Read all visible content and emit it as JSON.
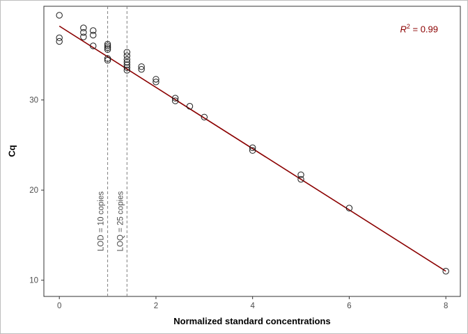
{
  "chart_data": {
    "type": "scatter",
    "title": "",
    "xlabel": "Normalized standard concentrations",
    "ylabel": "Cq",
    "xlim": [
      -0.32,
      8.3
    ],
    "ylim": [
      8.2,
      40.4
    ],
    "xticks": [
      0,
      2,
      4,
      6,
      8
    ],
    "yticks": [
      10,
      20,
      30
    ],
    "grid": false,
    "legend": "none",
    "points": [
      [
        0,
        39.4
      ],
      [
        0,
        36.9
      ],
      [
        0,
        36.5
      ],
      [
        0.5,
        38.0
      ],
      [
        0.5,
        37.5
      ],
      [
        0.5,
        37.0
      ],
      [
        0.7,
        37.7
      ],
      [
        0.7,
        37.2
      ],
      [
        0.7,
        36.0
      ],
      [
        1,
        36.2
      ],
      [
        1,
        36.0
      ],
      [
        1,
        35.8
      ],
      [
        1,
        35.6
      ],
      [
        1,
        34.6
      ],
      [
        1,
        34.4
      ],
      [
        1.4,
        35.3
      ],
      [
        1.4,
        34.9
      ],
      [
        1.4,
        34.5
      ],
      [
        1.4,
        34.2
      ],
      [
        1.4,
        33.9
      ],
      [
        1.4,
        33.6
      ],
      [
        1.4,
        33.3
      ],
      [
        1.7,
        33.7
      ],
      [
        1.7,
        33.4
      ],
      [
        2,
        32.3
      ],
      [
        2,
        32.0
      ],
      [
        2.4,
        30.2
      ],
      [
        2.4,
        29.9
      ],
      [
        2.7,
        29.3
      ],
      [
        3,
        28.1
      ],
      [
        4,
        24.7
      ],
      [
        4,
        24.4
      ],
      [
        5,
        21.7
      ],
      [
        5,
        21.2
      ],
      [
        6,
        18.0
      ],
      [
        8,
        11.0
      ]
    ],
    "regression": {
      "intercept": 38.2,
      "slope": -3.4,
      "x_start": 0,
      "x_end": 8,
      "color": "#8B0000",
      "width": 1.6
    },
    "vlines": [
      {
        "x": 1.0,
        "label": "LOD = 10 copies"
      },
      {
        "x": 1.4,
        "label": "LOQ = 25 copies"
      }
    ],
    "annotation": {
      "text": "R² = 0.99",
      "r": "R",
      "exp": "2",
      "rest": " = 0.99",
      "color": "#8B0000"
    },
    "point_style": {
      "radius": 4.2,
      "stroke": "#1a1a1a",
      "fill": "none"
    },
    "colors": {
      "panel_border": "#333333",
      "tick": "#333333",
      "tick_label": "#4d4d4d",
      "vline": "#808080",
      "vline_label": "#4d4d4d",
      "background": "#ffffff"
    }
  }
}
